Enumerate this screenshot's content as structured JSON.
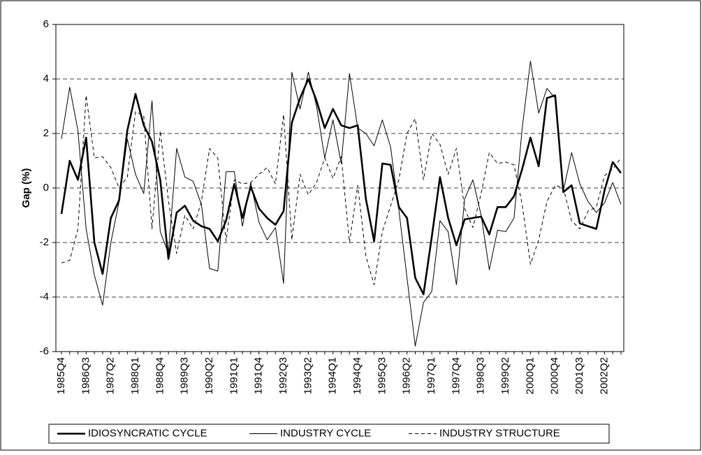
{
  "chart_data": {
    "type": "line",
    "y_label": "Gap (%)",
    "categories": [
      "1985Q4",
      null,
      null,
      "1986Q3",
      null,
      null,
      "1987Q2",
      null,
      null,
      "1988Q1",
      null,
      null,
      "1988Q4",
      null,
      null,
      "1989Q3",
      null,
      null,
      "1990Q2",
      null,
      null,
      "1991Q1",
      null,
      null,
      "1991Q4",
      null,
      null,
      "1992Q3",
      null,
      null,
      "1993Q2",
      null,
      null,
      "1994Q1",
      null,
      null,
      "1994Q4",
      null,
      null,
      "1995Q3",
      null,
      null,
      "1996Q2",
      null,
      null,
      "1997Q1",
      null,
      null,
      "1997Q4",
      null,
      null,
      "1998Q3",
      null,
      null,
      "1999Q2",
      null,
      null,
      "2000Q1",
      null,
      null,
      "2000Q4",
      null,
      null,
      "2001Q3",
      null,
      null,
      "2002Q2",
      null,
      null
    ],
    "series": [
      {
        "name": "IDIOSYNCRATIC CYCLE",
        "color": "#000000",
        "style": "thick",
        "values": [
          -0.95,
          1.0,
          0.3,
          1.85,
          -2.0,
          -3.15,
          -1.1,
          -0.45,
          2.1,
          3.45,
          2.3,
          1.7,
          0.3,
          -2.6,
          -0.9,
          -0.65,
          -1.2,
          -1.4,
          -1.5,
          -1.95,
          -1.2,
          0.15,
          -1.1,
          0.05,
          -0.75,
          -1.1,
          -1.35,
          -0.85,
          2.4,
          3.3,
          4.0,
          3.2,
          2.2,
          2.9,
          2.3,
          2.2,
          2.3,
          -0.4,
          -1.95,
          0.9,
          0.85,
          -0.7,
          -1.1,
          -3.3,
          -3.9,
          -1.8,
          0.4,
          -1.1,
          -2.1,
          -1.15,
          -1.1,
          -1.05,
          -1.7,
          -0.7,
          -0.7,
          -0.3,
          0.7,
          1.85,
          0.8,
          3.3,
          3.4,
          -0.15,
          0.1,
          -1.3,
          -1.4,
          -1.5,
          -0.1,
          0.95,
          0.55
        ]
      },
      {
        "name": "INDUSTRY CYCLE",
        "color": "#000000",
        "style": "thin",
        "values": [
          1.8,
          3.7,
          2.1,
          -1.5,
          -3.2,
          -4.3,
          -2.0,
          -0.5,
          1.8,
          0.5,
          -0.2,
          3.2,
          -1.6,
          -2.4,
          1.45,
          0.4,
          0.25,
          -0.6,
          -2.95,
          -3.05,
          0.6,
          0.6,
          -1.4,
          0.2,
          -1.25,
          -1.9,
          -1.45,
          -3.5,
          4.25,
          2.9,
          4.25,
          3.0,
          1.1,
          2.5,
          0.9,
          4.2,
          2.2,
          2.0,
          1.55,
          2.5,
          1.5,
          -0.8,
          -3.3,
          -5.8,
          -4.2,
          -3.8,
          -1.2,
          -1.6,
          -3.55,
          -0.4,
          0.3,
          -1.0,
          -3.0,
          -1.55,
          -1.6,
          -1.1,
          2.2,
          4.65,
          2.75,
          3.65,
          3.3,
          -0.1,
          1.3,
          0.15,
          -0.5,
          -0.9,
          -0.55,
          0.2,
          -0.6
        ]
      },
      {
        "name": "INDUSTRY STRUCTURE",
        "color": "#000000",
        "style": "dashed",
        "values": [
          -2.75,
          -2.65,
          -1.5,
          3.4,
          1.1,
          1.15,
          0.75,
          0.0,
          0.4,
          2.8,
          2.65,
          -1.5,
          2.1,
          -0.45,
          -2.4,
          -1.0,
          -1.5,
          -0.5,
          1.45,
          1.1,
          -1.95,
          0.3,
          0.15,
          0.2,
          0.5,
          0.75,
          0.15,
          2.7,
          -1.9,
          0.5,
          -0.25,
          0.2,
          1.1,
          0.35,
          1.15,
          -2.0,
          0.1,
          -2.5,
          -3.55,
          -1.6,
          -0.65,
          0.3,
          2.0,
          2.55,
          0.3,
          2.0,
          1.6,
          0.5,
          1.45,
          -0.75,
          -1.45,
          -0.2,
          1.3,
          0.9,
          0.95,
          0.85,
          -0.6,
          -2.8,
          -1.9,
          -0.5,
          0.1,
          0.0,
          -1.2,
          -1.5,
          -0.85,
          -0.7,
          0.45,
          0.7,
          1.1
        ]
      }
    ],
    "ylim": [
      -6,
      6
    ],
    "yticks": [
      -6,
      -4,
      -2,
      0,
      2,
      4,
      6
    ],
    "grid": true,
    "legend": "bottom"
  }
}
